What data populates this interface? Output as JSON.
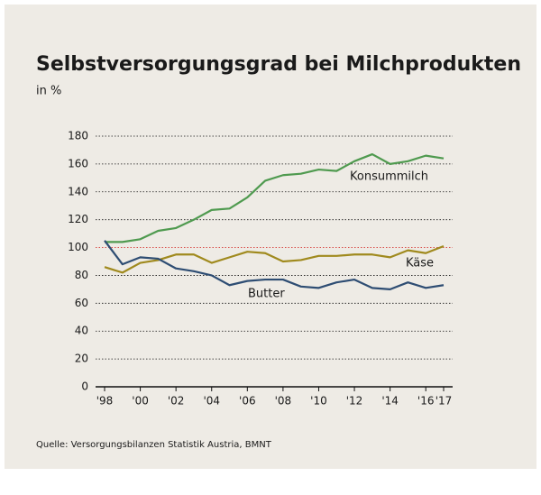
{
  "chart_data": {
    "type": "line",
    "title": "Selbstversorgungsgrad bei Milchprodukten",
    "subtitle": "in %",
    "source": "Quelle: Versorgungsbilanzen Statistik Austria, BMNT",
    "x": [
      1998,
      1999,
      2000,
      2001,
      2002,
      2003,
      2004,
      2005,
      2006,
      2007,
      2008,
      2009,
      2010,
      2011,
      2012,
      2013,
      2014,
      2015,
      2016,
      2017
    ],
    "series": [
      {
        "name": "Konsummilch",
        "color": "#4f9a4f",
        "values": [
          104,
          104,
          106,
          112,
          114,
          120,
          127,
          128,
          136,
          148,
          152,
          153,
          156,
          155,
          162,
          167,
          160,
          162,
          166,
          164
        ]
      },
      {
        "name": "Käse",
        "color": "#a08a1e",
        "values": [
          86,
          82,
          89,
          91,
          95,
          95,
          89,
          93,
          97,
          96,
          90,
          91,
          94,
          94,
          95,
          95,
          93,
          98,
          96,
          101
        ]
      },
      {
        "name": "Butter",
        "color": "#2e4d73",
        "values": [
          105,
          88,
          93,
          92,
          85,
          83,
          80,
          73,
          76,
          77,
          77,
          72,
          71,
          75,
          77,
          71,
          70,
          75,
          71,
          73
        ]
      }
    ],
    "xlim": [
      1998,
      2017
    ],
    "xticks": [
      {
        "value": 1998,
        "label": "'98"
      },
      {
        "value": 2000,
        "label": "'00"
      },
      {
        "value": 2002,
        "label": "'02"
      },
      {
        "value": 2004,
        "label": "'04"
      },
      {
        "value": 2006,
        "label": "'06"
      },
      {
        "value": 2008,
        "label": "'08"
      },
      {
        "value": 2010,
        "label": "'10"
      },
      {
        "value": 2012,
        "label": "'12"
      },
      {
        "value": 2014,
        "label": "'14"
      },
      {
        "value": 2016,
        "label": "'16"
      },
      {
        "value": 2017,
        "label": "'17"
      }
    ],
    "ylim": [
      0,
      180
    ],
    "yticks": [
      0,
      20,
      40,
      60,
      80,
      100,
      120,
      140,
      160,
      180
    ],
    "grid": true,
    "reference_line": 100,
    "reference_color": "#d9534f"
  }
}
